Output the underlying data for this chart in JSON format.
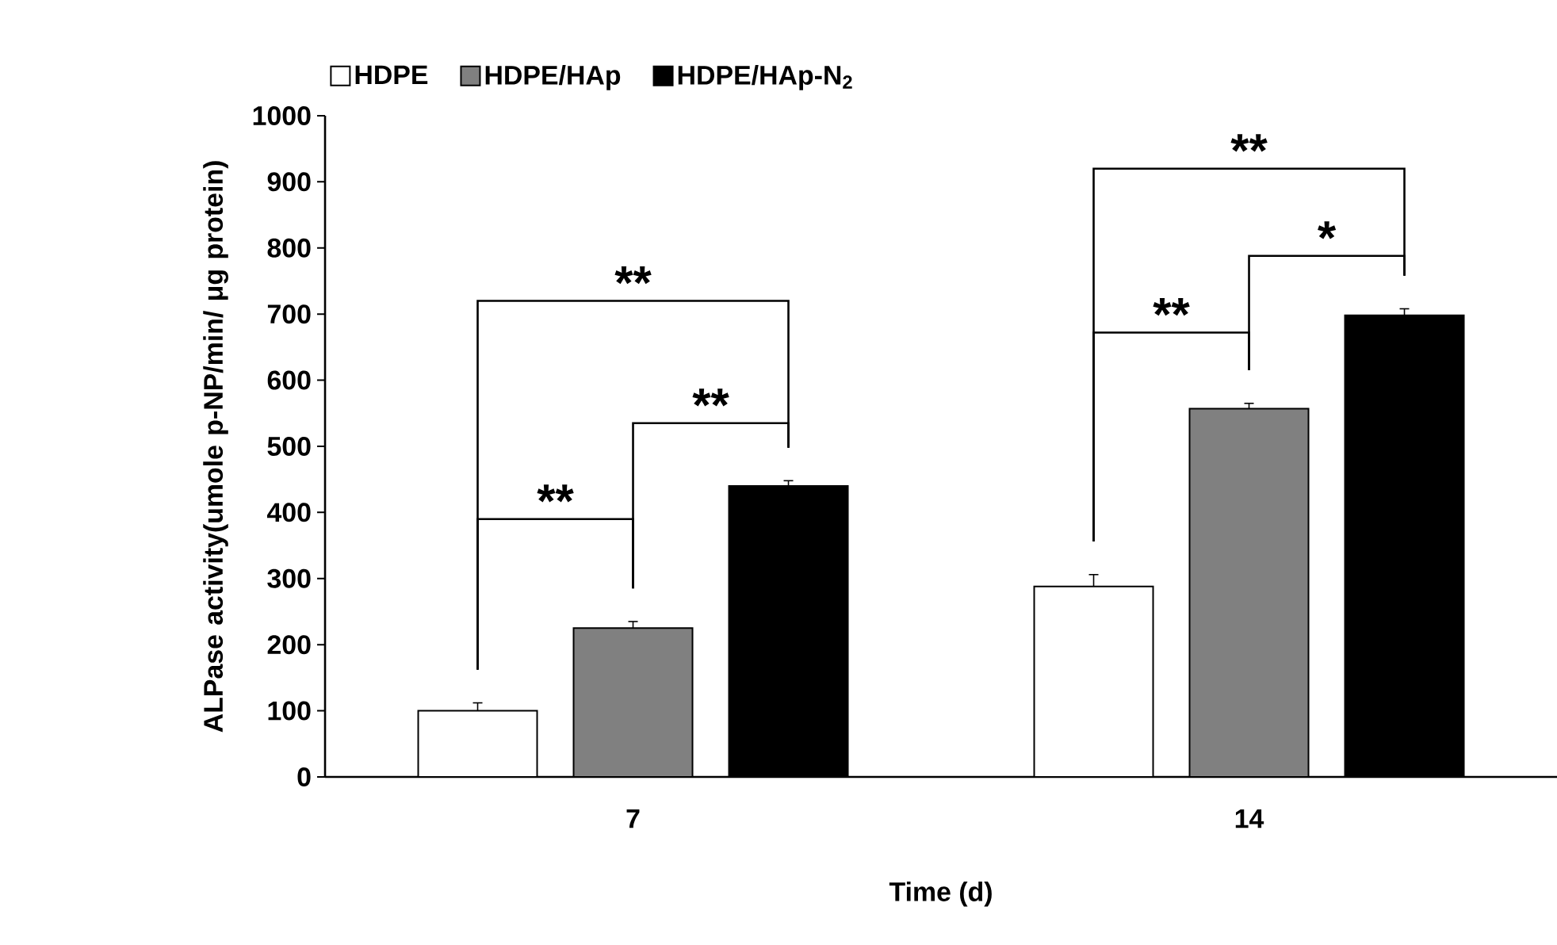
{
  "chart_data": {
    "type": "bar",
    "categories": [
      "7",
      "14"
    ],
    "series": [
      {
        "name": "HDPE",
        "color": "#ffffff",
        "values": [
          100,
          288
        ],
        "errors": [
          12,
          18
        ]
      },
      {
        "name": "HDPE/HAp",
        "color": "#808080",
        "values": [
          225,
          557
        ],
        "errors": [
          10,
          8
        ]
      },
      {
        "name": "HDPE/HAp-N$_{2}$",
        "color": "#000000",
        "values": [
          440,
          698
        ],
        "errors": [
          8,
          10
        ]
      }
    ],
    "xlabel": "Time (d)",
    "ylabel": "ALPase activity(umole p-NP/min/ μg protein)",
    "ylim": [
      0,
      1000
    ],
    "yticks": [
      0,
      100,
      200,
      300,
      400,
      500,
      600,
      700,
      800,
      900,
      1000
    ],
    "legend": "top",
    "grid": false,
    "annotations": [
      "**",
      "**",
      "**",
      "**",
      "*",
      "**"
    ]
  }
}
